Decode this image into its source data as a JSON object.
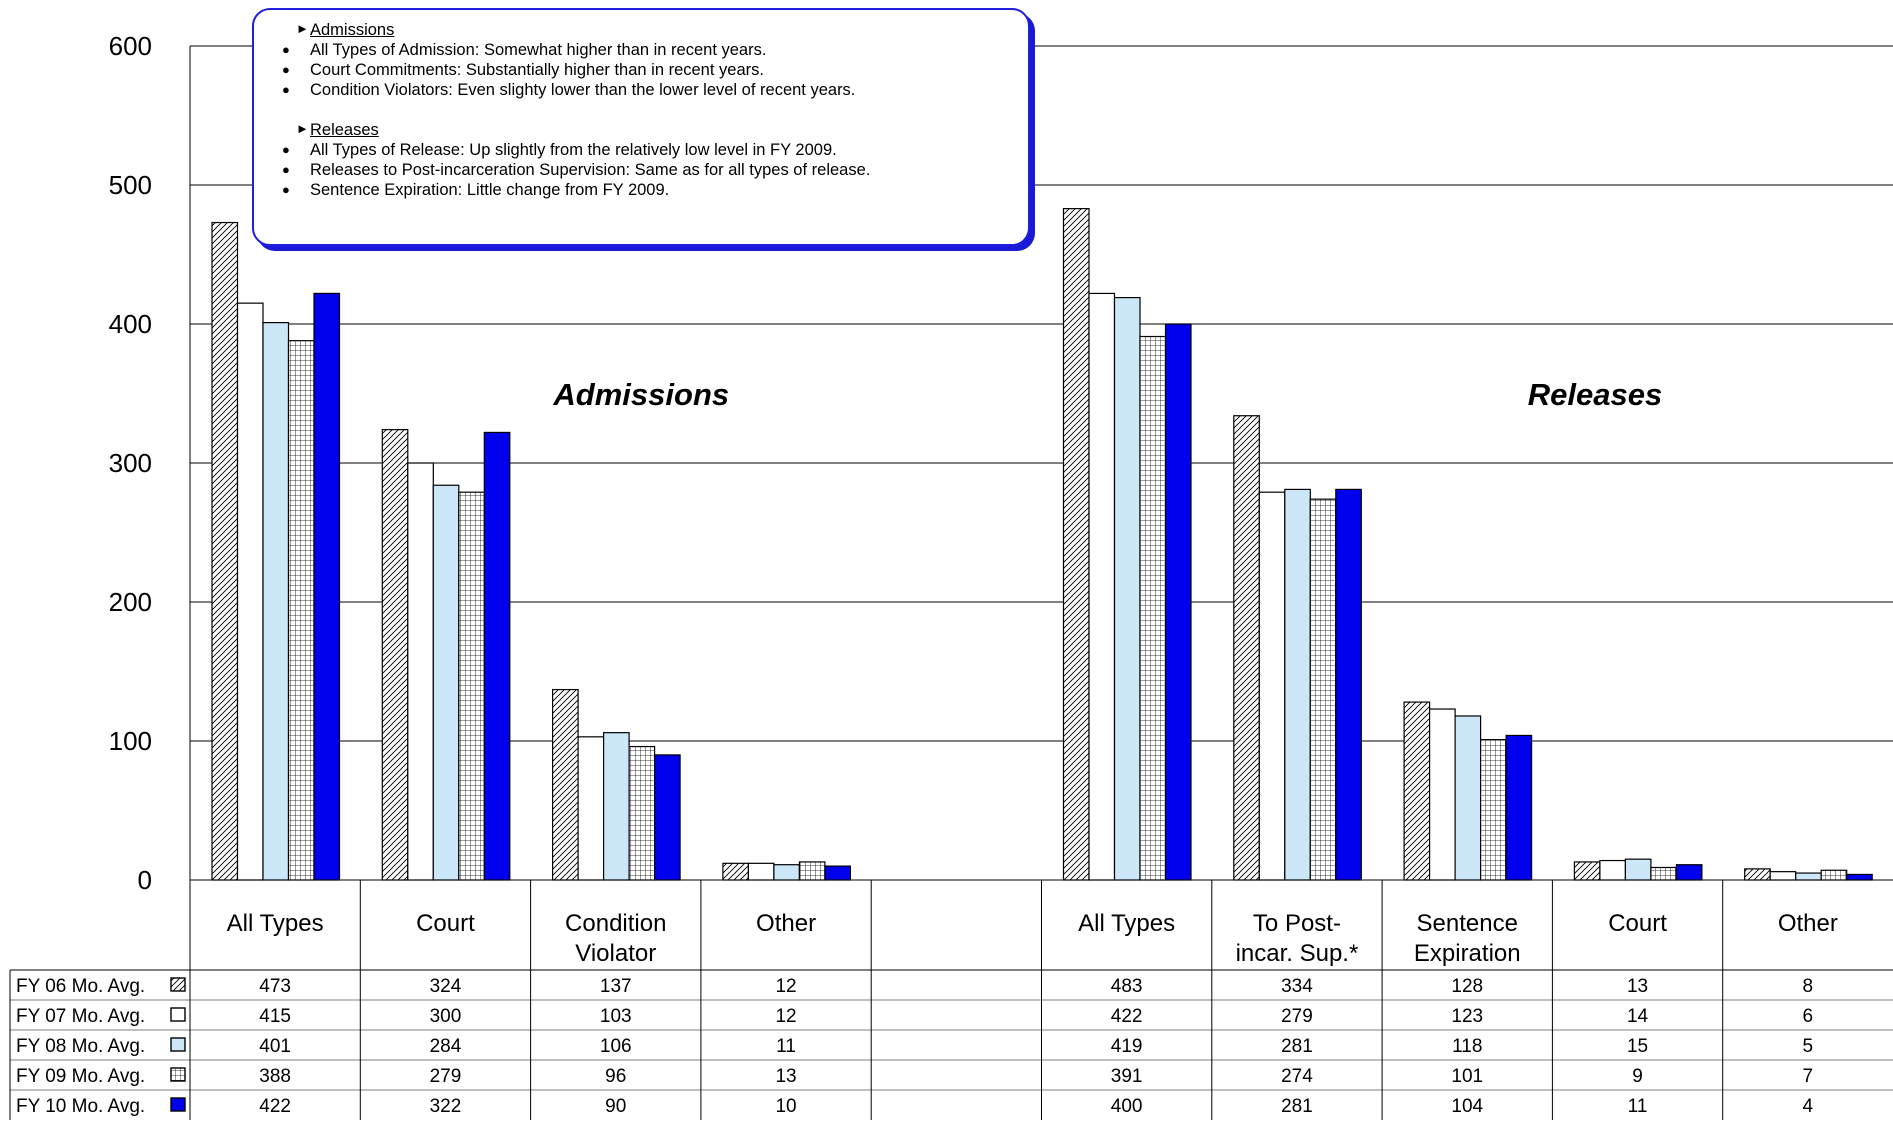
{
  "chart_data": {
    "type": "bar",
    "y_ticks": [
      "0",
      "100",
      "200",
      "300",
      "400",
      "500",
      "600"
    ],
    "ylim": [
      0,
      600
    ],
    "grid": "horizontal",
    "legend": "table rows below chart",
    "group_titles": [
      "Admissions",
      "Releases"
    ],
    "categories": [
      "All Types",
      "Court",
      "Condition Violator",
      "Other",
      "",
      "All Types",
      "To Post-incar. Sup.*",
      "Sentence Expiration",
      "Court",
      "Other"
    ],
    "category_lines": [
      [
        "All Types"
      ],
      [
        "Court"
      ],
      [
        "Condition",
        "Violator"
      ],
      [
        "Other"
      ],
      [],
      [
        "All Types"
      ],
      [
        "To Post-",
        "incar. Sup.*"
      ],
      [
        "Sentence",
        "Expiration"
      ],
      [
        "Court"
      ],
      [
        "Other"
      ]
    ],
    "series": [
      {
        "name": "FY 06 Mo. Avg.",
        "values": [
          473,
          324,
          137,
          12,
          null,
          483,
          334,
          128,
          13,
          8
        ],
        "fill": "hatch-diagonal"
      },
      {
        "name": "FY 07 Mo. Avg.",
        "values": [
          415,
          300,
          103,
          12,
          null,
          422,
          279,
          123,
          14,
          6
        ],
        "fill": "white"
      },
      {
        "name": "FY 08 Mo. Avg.",
        "values": [
          401,
          284,
          106,
          11,
          null,
          419,
          281,
          118,
          15,
          5
        ],
        "fill": "#cce8f8"
      },
      {
        "name": "FY 09 Mo. Avg.",
        "values": [
          388,
          279,
          96,
          13,
          null,
          391,
          274,
          101,
          9,
          7
        ],
        "fill": "hatch-grid"
      },
      {
        "name": "FY 10 Mo. Avg.",
        "values": [
          422,
          322,
          90,
          10,
          null,
          400,
          281,
          104,
          11,
          4
        ],
        "fill": "#0000ee"
      }
    ],
    "colors": {
      "axis": "#000000",
      "gridline": "#000000",
      "light_blue": "#cce8f8",
      "dark_blue": "#0000ee",
      "box_border": "#1f1fe0"
    }
  },
  "notes": {
    "admissions_heading": "Admissions",
    "admissions_items": [
      "All Types of Admission:  Somewhat higher than in recent years.",
      "Court Commitments:  Substantially higher than in recent years.",
      "Condition Violators:  Even slighty lower than the lower level of recent years."
    ],
    "releases_heading": "Releases",
    "releases_items": [
      "All Types of Release:  Up slightly from the relatively low level in FY 2009.",
      "Releases to Post-incarceration Supervision:  Same as for all types of release.",
      "Sentence Expiration:  Little change from FY 2009."
    ]
  }
}
